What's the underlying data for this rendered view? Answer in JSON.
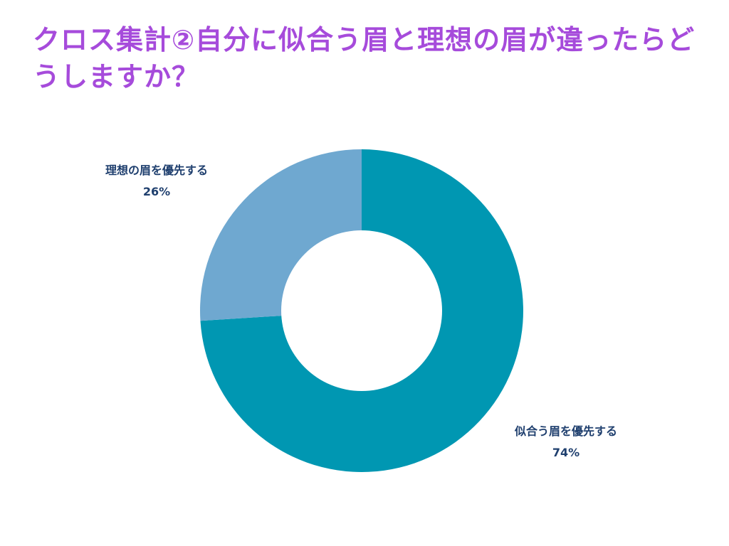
{
  "colors": {
    "title": "#a64bdb",
    "label": "#1f3f6e",
    "background": "#ffffff"
  },
  "chart_data": {
    "type": "pie",
    "variant": "donut",
    "title": "クロス集計②自分に似合う眉と理想の眉が違ったらどうしますか？",
    "slices": [
      {
        "label": "似合う眉を優先する",
        "value": 74,
        "value_label": "74%",
        "color": "#0097b2"
      },
      {
        "label": "理想の眉を優先する",
        "value": 26,
        "value_label": "26%",
        "color": "#6fa8d0"
      }
    ],
    "start": "top",
    "direction": "clockwise",
    "legend": "none"
  }
}
